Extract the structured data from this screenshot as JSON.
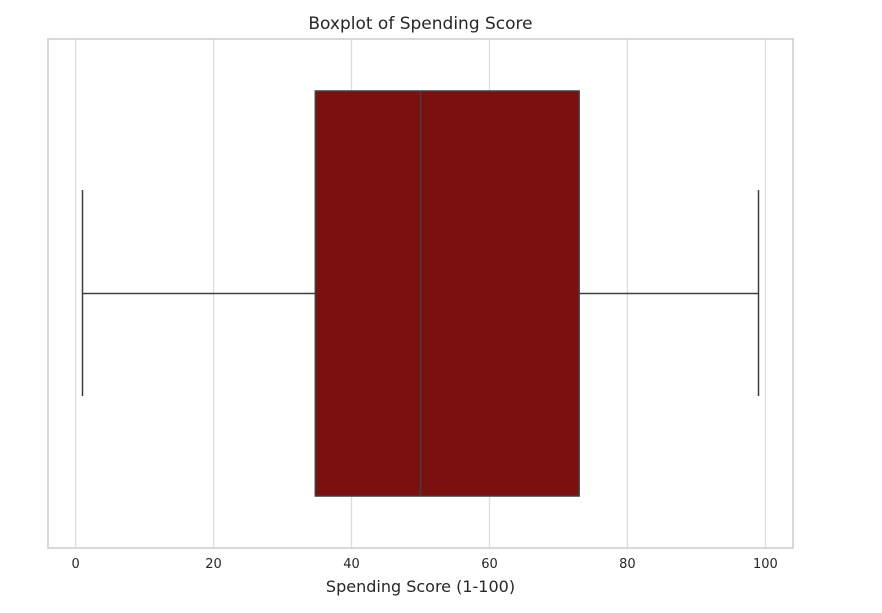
{
  "chart_data": {
    "type": "boxplot",
    "title": "Boxplot of Spending Score",
    "xlabel": "Spending Score (1-100)",
    "ylabel": "",
    "orientation": "horizontal",
    "xlim": [
      -4,
      104
    ],
    "x_ticks": [
      0,
      20,
      40,
      60,
      80,
      100
    ],
    "x_tick_labels": [
      "0",
      "20",
      "40",
      "60",
      "80",
      "100"
    ],
    "grid": "vertical",
    "box": {
      "whisker_low": 1,
      "q1": 34.75,
      "median": 50,
      "q3": 73,
      "whisker_high": 99
    },
    "colors": {
      "box_fill": "#7a1010",
      "box_edge": "#3f3f3f",
      "whisker": "#3f3f3f",
      "grid": "#dcdcdc",
      "frame": "#cccccc",
      "text": "#262626"
    }
  }
}
